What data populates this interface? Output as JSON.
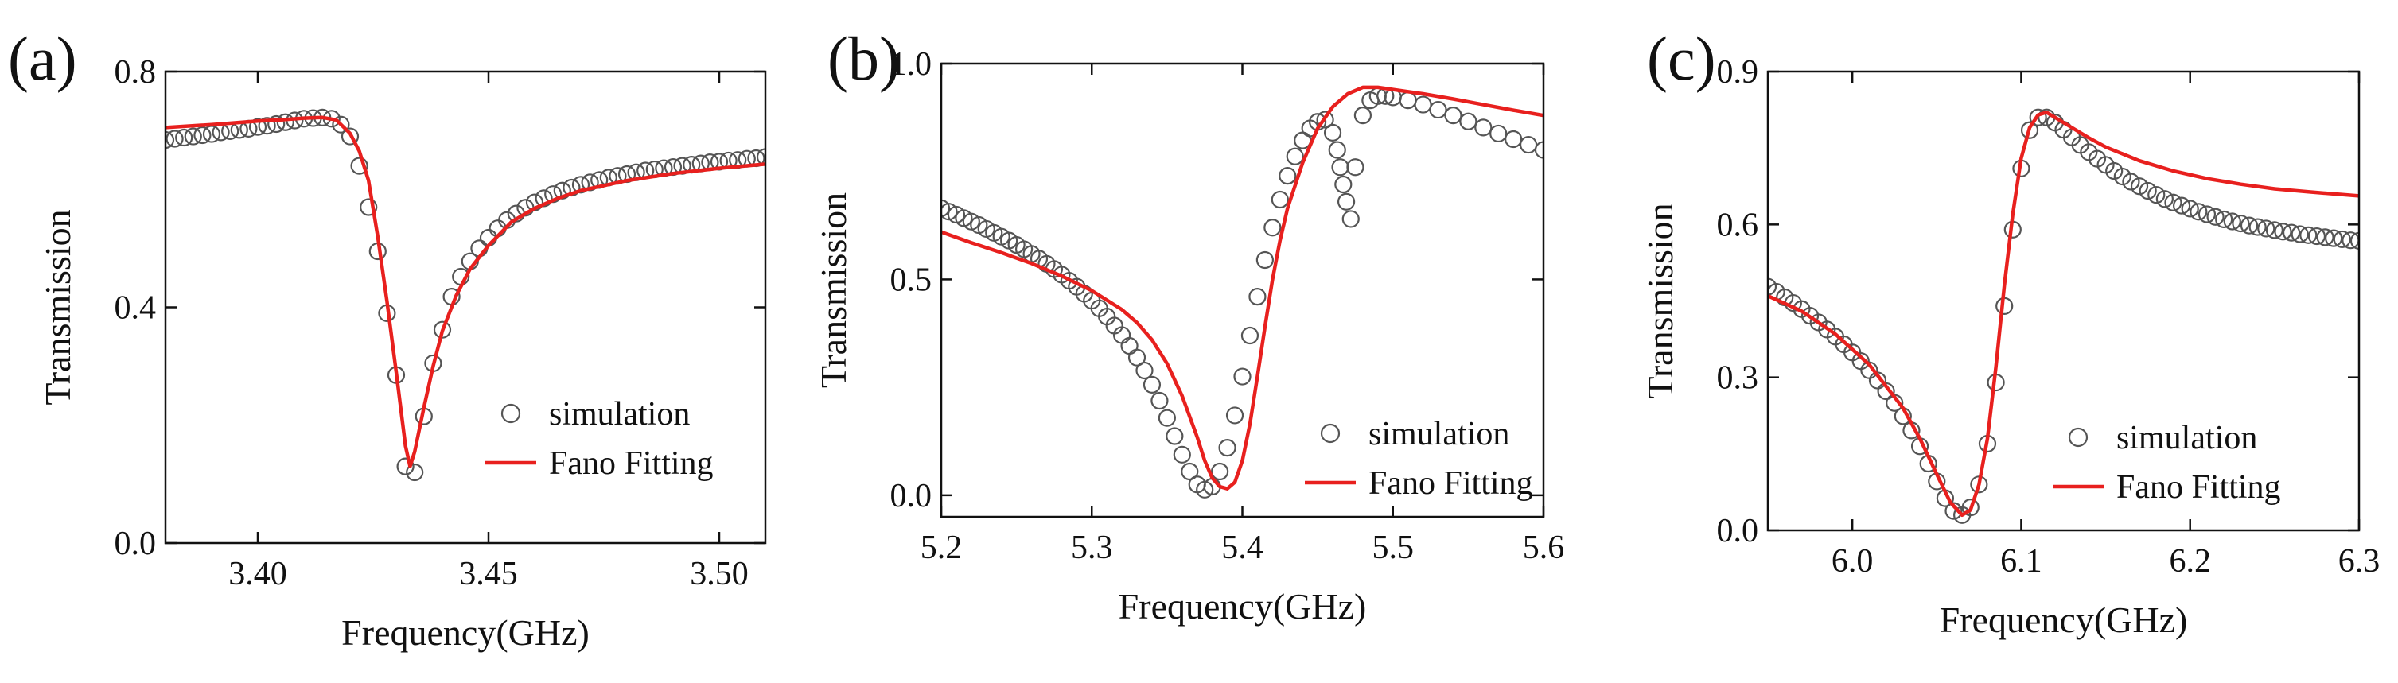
{
  "chart_data": [
    {
      "type": "scatter",
      "panel_label": "(a)",
      "xlabel": "Frequency(GHz)",
      "ylabel": "Transmission",
      "xlim": [
        3.38,
        3.51
      ],
      "ylim": [
        0.0,
        0.8
      ],
      "xticks": [
        3.4,
        3.45,
        3.5
      ],
      "xtick_labels": [
        "3.40",
        "3.45",
        "3.50"
      ],
      "yticks": [
        0.0,
        0.4,
        0.8
      ],
      "ytick_labels": [
        "0.0",
        "0.4",
        "0.8"
      ],
      "legend": {
        "placement": "lower-right",
        "entries": [
          "simulation",
          "Fano Fitting"
        ]
      },
      "series": [
        {
          "name": "simulation",
          "marker": "open-circle",
          "color": "#555555",
          "x": [
            3.38,
            3.382,
            3.384,
            3.386,
            3.388,
            3.39,
            3.392,
            3.394,
            3.396,
            3.398,
            3.4,
            3.402,
            3.404,
            3.406,
            3.408,
            3.41,
            3.412,
            3.414,
            3.416,
            3.418,
            3.42,
            3.422,
            3.424,
            3.426,
            3.428,
            3.43,
            3.432,
            3.434,
            3.436,
            3.438,
            3.44,
            3.442,
            3.444,
            3.446,
            3.448,
            3.45,
            3.452,
            3.454,
            3.456,
            3.458,
            3.46,
            3.462,
            3.464,
            3.466,
            3.468,
            3.47,
            3.472,
            3.474,
            3.476,
            3.478,
            3.48,
            3.482,
            3.484,
            3.486,
            3.488,
            3.49,
            3.492,
            3.494,
            3.496,
            3.498,
            3.5,
            3.502,
            3.504,
            3.506,
            3.508,
            3.51
          ],
          "y": [
            0.684,
            0.686,
            0.688,
            0.69,
            0.692,
            0.694,
            0.697,
            0.699,
            0.701,
            0.703,
            0.706,
            0.708,
            0.711,
            0.714,
            0.717,
            0.72,
            0.721,
            0.722,
            0.72,
            0.71,
            0.69,
            0.64,
            0.57,
            0.495,
            0.39,
            0.285,
            0.13,
            0.12,
            0.215,
            0.305,
            0.362,
            0.418,
            0.452,
            0.478,
            0.5,
            0.518,
            0.534,
            0.548,
            0.559,
            0.569,
            0.578,
            0.585,
            0.592,
            0.598,
            0.603,
            0.608,
            0.612,
            0.616,
            0.62,
            0.623,
            0.626,
            0.629,
            0.632,
            0.634,
            0.636,
            0.638,
            0.64,
            0.642,
            0.644,
            0.646,
            0.647,
            0.649,
            0.65,
            0.652,
            0.653,
            0.655
          ]
        },
        {
          "name": "Fano Fitting",
          "marker": "line",
          "color": "#e8201e",
          "x": [
            3.38,
            3.39,
            3.4,
            3.405,
            3.41,
            3.414,
            3.417,
            3.42,
            3.422,
            3.424,
            3.426,
            3.428,
            3.43,
            3.432,
            3.433,
            3.434,
            3.436,
            3.438,
            3.44,
            3.443,
            3.446,
            3.45,
            3.455,
            3.46,
            3.465,
            3.47,
            3.48,
            3.49,
            3.5,
            3.51
          ],
          "y": [
            0.705,
            0.71,
            0.716,
            0.718,
            0.721,
            0.722,
            0.718,
            0.695,
            0.665,
            0.615,
            0.52,
            0.41,
            0.29,
            0.165,
            0.13,
            0.155,
            0.23,
            0.3,
            0.36,
            0.42,
            0.465,
            0.505,
            0.545,
            0.568,
            0.585,
            0.598,
            0.615,
            0.627,
            0.636,
            0.643
          ]
        }
      ]
    },
    {
      "type": "scatter",
      "panel_label": "(b)",
      "xlabel": "Frequency(GHz)",
      "ylabel": "Transmission",
      "xlim": [
        5.2,
        5.6
      ],
      "ylim": [
        -0.05,
        1.0
      ],
      "xticks": [
        5.2,
        5.3,
        5.4,
        5.5,
        5.6
      ],
      "xtick_labels": [
        "5.2",
        "5.3",
        "5.4",
        "5.5",
        "5.6"
      ],
      "yticks": [
        0.0,
        0.5,
        1.0
      ],
      "ytick_labels": [
        "0.0",
        "0.5",
        "1.0"
      ],
      "legend": {
        "placement": "lower-right",
        "entries": [
          "simulation",
          "Fano Fitting"
        ]
      },
      "series": [
        {
          "name": "simulation",
          "marker": "open-circle",
          "color": "#555555",
          "x": [
            5.2,
            5.205,
            5.21,
            5.215,
            5.22,
            5.225,
            5.23,
            5.235,
            5.24,
            5.245,
            5.25,
            5.255,
            5.26,
            5.265,
            5.27,
            5.275,
            5.28,
            5.285,
            5.29,
            5.295,
            5.3,
            5.305,
            5.31,
            5.315,
            5.32,
            5.325,
            5.33,
            5.335,
            5.34,
            5.345,
            5.35,
            5.355,
            5.36,
            5.365,
            5.37,
            5.375,
            5.38,
            5.385,
            5.39,
            5.395,
            5.4,
            5.405,
            5.41,
            5.415,
            5.42,
            5.425,
            5.43,
            5.435,
            5.44,
            5.445,
            5.45,
            5.455,
            5.46,
            5.463,
            5.465,
            5.467,
            5.469,
            5.472,
            5.475,
            5.48,
            5.485,
            5.49,
            5.495,
            5.5,
            5.51,
            5.52,
            5.53,
            5.54,
            5.55,
            5.56,
            5.57,
            5.58,
            5.59,
            5.6
          ],
          "y": [
            0.665,
            0.657,
            0.65,
            0.642,
            0.634,
            0.626,
            0.617,
            0.608,
            0.599,
            0.59,
            0.58,
            0.57,
            0.559,
            0.548,
            0.536,
            0.524,
            0.511,
            0.497,
            0.483,
            0.467,
            0.451,
            0.433,
            0.414,
            0.393,
            0.371,
            0.346,
            0.319,
            0.289,
            0.256,
            0.219,
            0.179,
            0.137,
            0.094,
            0.055,
            0.025,
            0.013,
            0.02,
            0.055,
            0.11,
            0.185,
            0.275,
            0.37,
            0.46,
            0.545,
            0.62,
            0.685,
            0.74,
            0.785,
            0.822,
            0.85,
            0.865,
            0.87,
            0.84,
            0.8,
            0.76,
            0.72,
            0.68,
            0.64,
            0.76,
            0.88,
            0.915,
            0.925,
            0.925,
            0.922,
            0.915,
            0.905,
            0.893,
            0.88,
            0.866,
            0.852,
            0.838,
            0.825,
            0.812,
            0.8
          ]
        },
        {
          "name": "Fano Fitting",
          "marker": "line",
          "color": "#e8201e",
          "x": [
            5.2,
            5.22,
            5.24,
            5.26,
            5.28,
            5.3,
            5.32,
            5.33,
            5.34,
            5.35,
            5.36,
            5.37,
            5.375,
            5.38,
            5.385,
            5.39,
            5.395,
            5.4,
            5.405,
            5.41,
            5.415,
            5.42,
            5.425,
            5.43,
            5.44,
            5.45,
            5.46,
            5.47,
            5.48,
            5.49,
            5.5,
            5.52,
            5.54,
            5.56,
            5.58,
            5.6
          ],
          "y": [
            0.61,
            0.585,
            0.562,
            0.537,
            0.508,
            0.474,
            0.43,
            0.4,
            0.36,
            0.305,
            0.23,
            0.135,
            0.08,
            0.04,
            0.02,
            0.015,
            0.03,
            0.08,
            0.165,
            0.275,
            0.39,
            0.5,
            0.59,
            0.665,
            0.77,
            0.85,
            0.9,
            0.93,
            0.945,
            0.945,
            0.94,
            0.93,
            0.918,
            0.905,
            0.892,
            0.88
          ]
        }
      ]
    },
    {
      "type": "scatter",
      "panel_label": "(c)",
      "xlabel": "Frequency(GHz)",
      "ylabel": "Transmission",
      "xlim": [
        5.95,
        6.3
      ],
      "ylim": [
        0.0,
        0.9
      ],
      "xticks": [
        6.0,
        6.1,
        6.2,
        6.3
      ],
      "xtick_labels": [
        "6.0",
        "6.1",
        "6.2",
        "6.3"
      ],
      "yticks": [
        0.0,
        0.3,
        0.6,
        0.9
      ],
      "ytick_labels": [
        "0.0",
        "0.3",
        "0.6",
        "0.9"
      ],
      "legend": {
        "placement": "lower-right",
        "entries": [
          "simulation",
          "Fano Fitting"
        ]
      },
      "series": [
        {
          "name": "simulation",
          "marker": "open-circle",
          "color": "#555555",
          "x": [
            5.95,
            5.955,
            5.96,
            5.965,
            5.97,
            5.975,
            5.98,
            5.985,
            5.99,
            5.995,
            6.0,
            6.005,
            6.01,
            6.015,
            6.02,
            6.025,
            6.03,
            6.035,
            6.04,
            6.045,
            6.05,
            6.055,
            6.06,
            6.065,
            6.07,
            6.075,
            6.08,
            6.085,
            6.09,
            6.095,
            6.1,
            6.105,
            6.11,
            6.115,
            6.12,
            6.125,
            6.13,
            6.135,
            6.14,
            6.145,
            6.15,
            6.155,
            6.16,
            6.165,
            6.17,
            6.175,
            6.18,
            6.185,
            6.19,
            6.195,
            6.2,
            6.205,
            6.21,
            6.215,
            6.22,
            6.225,
            6.23,
            6.235,
            6.24,
            6.245,
            6.25,
            6.255,
            6.26,
            6.265,
            6.27,
            6.275,
            6.28,
            6.285,
            6.29,
            6.295,
            6.3
          ],
          "y": [
            0.478,
            0.468,
            0.457,
            0.446,
            0.434,
            0.421,
            0.408,
            0.394,
            0.38,
            0.365,
            0.349,
            0.332,
            0.314,
            0.294,
            0.273,
            0.25,
            0.224,
            0.196,
            0.165,
            0.131,
            0.096,
            0.063,
            0.038,
            0.03,
            0.045,
            0.09,
            0.17,
            0.29,
            0.44,
            0.59,
            0.71,
            0.785,
            0.81,
            0.81,
            0.8,
            0.786,
            0.771,
            0.756,
            0.742,
            0.729,
            0.717,
            0.705,
            0.694,
            0.684,
            0.675,
            0.666,
            0.658,
            0.65,
            0.643,
            0.637,
            0.631,
            0.625,
            0.62,
            0.615,
            0.61,
            0.606,
            0.602,
            0.598,
            0.595,
            0.592,
            0.589,
            0.586,
            0.584,
            0.581,
            0.579,
            0.577,
            0.575,
            0.573,
            0.571,
            0.569,
            0.568
          ]
        },
        {
          "name": "Fano Fitting",
          "marker": "line",
          "color": "#e8201e",
          "x": [
            5.95,
            5.97,
            5.99,
            6.01,
            6.03,
            6.04,
            6.05,
            6.058,
            6.065,
            6.07,
            6.075,
            6.08,
            6.085,
            6.09,
            6.095,
            6.1,
            6.105,
            6.11,
            6.115,
            6.12,
            6.13,
            6.14,
            6.15,
            6.17,
            6.19,
            6.21,
            6.23,
            6.25,
            6.27,
            6.3
          ],
          "y": [
            0.46,
            0.43,
            0.385,
            0.325,
            0.24,
            0.18,
            0.11,
            0.055,
            0.03,
            0.04,
            0.09,
            0.18,
            0.32,
            0.48,
            0.62,
            0.73,
            0.79,
            0.815,
            0.82,
            0.81,
            0.79,
            0.77,
            0.752,
            0.725,
            0.705,
            0.69,
            0.679,
            0.67,
            0.664,
            0.656
          ]
        }
      ]
    }
  ]
}
